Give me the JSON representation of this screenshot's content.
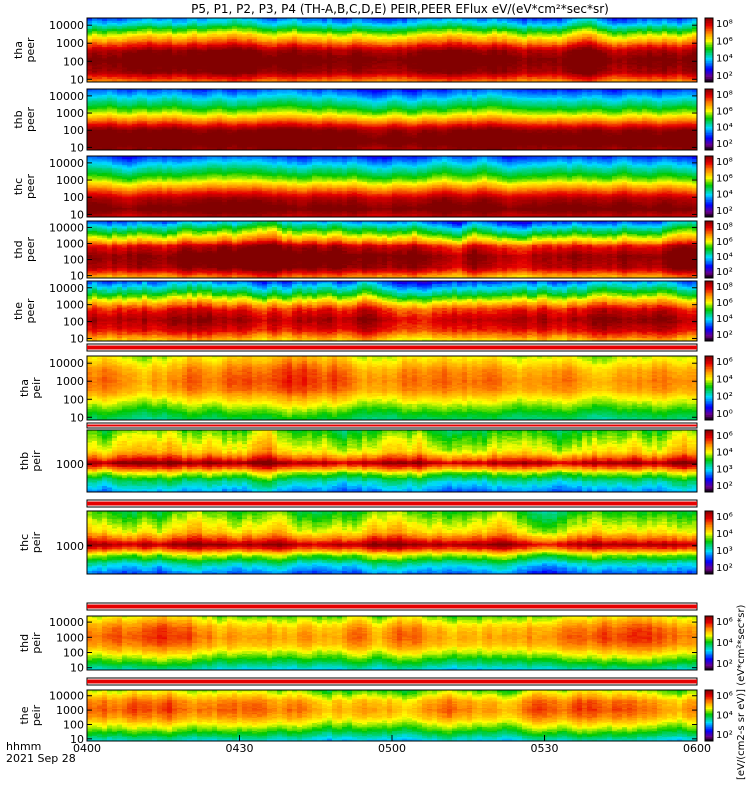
{
  "title": "P5, P1, P2, P3, P4 (TH-A,B,C,D,E) PEIR,PEER EFlux eV/(eV*cm²*sec*sr)",
  "time_axis": {
    "label_top": "hhmm",
    "label_bottom": "2021 Sep 28",
    "ticks": [
      "0400",
      "0430",
      "0500",
      "0530",
      "0600"
    ]
  },
  "colorbar_label": "[eV/(cm2-s sr eV)] (eV*cm²*sec*sr)",
  "colors": {
    "dark_red": "#8b0000",
    "red": "#e60000",
    "orange": "#ff8c00",
    "yellow": "#ffff00",
    "green": "#00c800",
    "cyan": "#00e0ff",
    "blue": "#0000ff",
    "purple": "#7f00ff"
  },
  "chart_data": [
    {
      "type": "heatmap",
      "id": "tha-peer",
      "ylabel": [
        "tha",
        "peer"
      ],
      "yticks": [
        "10000",
        "1000",
        "100",
        "10"
      ],
      "cbar_ticks": [
        "10⁸",
        "10⁶",
        "10⁴",
        "10²"
      ],
      "cbar_range": [
        1,
        8
      ],
      "ylim_log": [
        0.85,
        4.4
      ],
      "profile": [
        [
          0.9,
          6.4
        ],
        [
          1.4,
          7.8
        ],
        [
          2.1,
          8.2
        ],
        [
          2.6,
          7.7
        ],
        [
          3.1,
          6.3
        ],
        [
          3.5,
          5.3
        ],
        [
          3.8,
          4.4
        ],
        [
          4.1,
          3.5
        ],
        [
          4.4,
          2.8
        ]
      ],
      "variability": 0.35
    },
    {
      "type": "heatmap",
      "id": "thb-peer",
      "ylabel": [
        "thb",
        "peer"
      ],
      "yticks": [
        "10000",
        "1000",
        "100",
        "10"
      ],
      "cbar_ticks": [
        "10⁸",
        "10⁶",
        "10⁴",
        "10²"
      ],
      "cbar_range": [
        1,
        8
      ],
      "ylim_log": [
        0.85,
        4.4
      ],
      "profile": [
        [
          0.9,
          7.8
        ],
        [
          1.4,
          8.4
        ],
        [
          2.0,
          7.9
        ],
        [
          2.5,
          6.5
        ],
        [
          3.0,
          5.2
        ],
        [
          3.5,
          4.2
        ],
        [
          4.0,
          3.3
        ],
        [
          4.4,
          2.6
        ]
      ],
      "variability": 0.25
    },
    {
      "type": "heatmap",
      "id": "thc-peer",
      "ylabel": [
        "thc",
        "peer"
      ],
      "yticks": [
        "10000",
        "1000",
        "100",
        "10"
      ],
      "cbar_ticks": [
        "10⁸",
        "10⁶",
        "10⁴",
        "10²"
      ],
      "cbar_range": [
        1,
        8
      ],
      "ylim_log": [
        0.85,
        4.4
      ],
      "profile": [
        [
          0.9,
          7.5
        ],
        [
          1.3,
          8.2
        ],
        [
          1.9,
          7.7
        ],
        [
          2.5,
          6.4
        ],
        [
          3.0,
          5.2
        ],
        [
          3.5,
          4.3
        ],
        [
          4.0,
          3.4
        ],
        [
          4.4,
          2.7
        ]
      ],
      "variability": 0.25
    },
    {
      "type": "heatmap",
      "id": "thd-peer",
      "ylabel": [
        "thd",
        "peer"
      ],
      "yticks": [
        "10000",
        "1000",
        "100",
        "10"
      ],
      "cbar_ticks": [
        "10⁸",
        "10⁶",
        "10⁴",
        "10²"
      ],
      "cbar_range": [
        1,
        8
      ],
      "ylim_log": [
        0.85,
        4.4
      ],
      "profile": [
        [
          0.9,
          6.2
        ],
        [
          1.5,
          7.8
        ],
        [
          2.2,
          8.1
        ],
        [
          2.8,
          7.4
        ],
        [
          3.2,
          6.0
        ],
        [
          3.6,
          5.0
        ],
        [
          4.0,
          4.0
        ],
        [
          4.4,
          3.0
        ]
      ],
      "variability": 0.4
    },
    {
      "type": "heatmap",
      "id": "the-peer",
      "ylabel": [
        "the",
        "peer"
      ],
      "yticks": [
        "10000",
        "1000",
        "100",
        "10"
      ],
      "cbar_ticks": [
        "10⁸",
        "10⁶",
        "10⁴",
        "10²"
      ],
      "cbar_range": [
        1,
        8
      ],
      "ylim_log": [
        0.85,
        4.4
      ],
      "profile": [
        [
          0.9,
          6.0
        ],
        [
          1.5,
          7.3
        ],
        [
          2.1,
          7.8
        ],
        [
          2.7,
          7.2
        ],
        [
          3.2,
          5.9
        ],
        [
          3.6,
          4.8
        ],
        [
          4.0,
          3.9
        ],
        [
          4.4,
          3.0
        ]
      ],
      "variability": 0.45
    },
    {
      "type": "heatmap",
      "id": "tha-peir",
      "ylabel": [
        "tha",
        "peir"
      ],
      "yticks": [
        "10000",
        "1000",
        "100",
        "10"
      ],
      "cbar_ticks": [
        "10⁶",
        "10⁴",
        "10²",
        "10⁰"
      ],
      "cbar_range": [
        0,
        7
      ],
      "ylim_log": [
        0.85,
        4.4
      ],
      "profile": [
        [
          0.9,
          3.3
        ],
        [
          1.3,
          3.8
        ],
        [
          1.9,
          4.6
        ],
        [
          2.5,
          5.4
        ],
        [
          3.0,
          5.6
        ],
        [
          3.6,
          5.4
        ],
        [
          4.0,
          5.0
        ],
        [
          4.4,
          4.6
        ]
      ],
      "variability": 0.3
    },
    {
      "type": "heatmap",
      "id": "thb-peir",
      "ylabel": [
        "thb",
        "peir"
      ],
      "yticks": [
        "1000"
      ],
      "cbar_ticks": [
        "10⁶",
        "10⁴",
        "10³",
        "10²"
      ],
      "cbar_range": [
        1.5,
        6.5
      ],
      "ylim_log": [
        1.7,
        4.6
      ],
      "profile": [
        [
          1.7,
          3.0
        ],
        [
          2.2,
          3.7
        ],
        [
          2.6,
          4.6
        ],
        [
          2.9,
          5.8
        ],
        [
          3.05,
          6.4
        ],
        [
          3.2,
          5.8
        ],
        [
          3.6,
          4.9
        ],
        [
          4.1,
          4.6
        ],
        [
          4.6,
          4.2
        ]
      ],
      "variability": 0.3
    },
    {
      "type": "heatmap",
      "id": "thc-peir",
      "ylabel": [
        "thc",
        "peir"
      ],
      "yticks": [
        "1000"
      ],
      "cbar_ticks": [
        "10⁶",
        "10⁴",
        "10³",
        "10²"
      ],
      "cbar_range": [
        1.5,
        6.5
      ],
      "ylim_log": [
        1.7,
        4.6
      ],
      "profile": [
        [
          1.7,
          2.8
        ],
        [
          2.2,
          3.6
        ],
        [
          2.6,
          4.6
        ],
        [
          2.9,
          5.8
        ],
        [
          3.05,
          6.3
        ],
        [
          3.2,
          5.8
        ],
        [
          3.6,
          4.9
        ],
        [
          4.1,
          4.5
        ],
        [
          4.6,
          4.1
        ]
      ],
      "variability": 0.3
    },
    {
      "type": "heatmap",
      "id": "thd-peir",
      "ylabel": [
        "thd",
        "peir"
      ],
      "yticks": [
        "10000",
        "1000",
        "100",
        "10"
      ],
      "cbar_ticks": [
        "10⁶",
        "10⁴",
        "10²"
      ],
      "cbar_range": [
        1,
        7
      ],
      "ylim_log": [
        0.85,
        4.4
      ],
      "profile": [
        [
          0.9,
          3.3
        ],
        [
          1.3,
          3.9
        ],
        [
          1.9,
          4.7
        ],
        [
          2.5,
          5.4
        ],
        [
          3.0,
          5.6
        ],
        [
          3.6,
          5.4
        ],
        [
          4.0,
          5.0
        ],
        [
          4.4,
          4.5
        ]
      ],
      "variability": 0.3
    },
    {
      "type": "heatmap",
      "id": "the-peir",
      "ylabel": [
        "the",
        "peir"
      ],
      "yticks": [
        "10000",
        "1000",
        "100",
        "10"
      ],
      "cbar_ticks": [
        "10⁶",
        "10⁴",
        "10²"
      ],
      "cbar_range": [
        1,
        7
      ],
      "ylim_log": [
        0.85,
        4.4
      ],
      "profile": [
        [
          0.9,
          3.3
        ],
        [
          1.3,
          3.9
        ],
        [
          1.9,
          4.7
        ],
        [
          2.5,
          5.4
        ],
        [
          3.0,
          5.7
        ],
        [
          3.6,
          5.5
        ],
        [
          4.0,
          5.0
        ],
        [
          4.4,
          4.5
        ]
      ],
      "variability": 0.3
    }
  ]
}
